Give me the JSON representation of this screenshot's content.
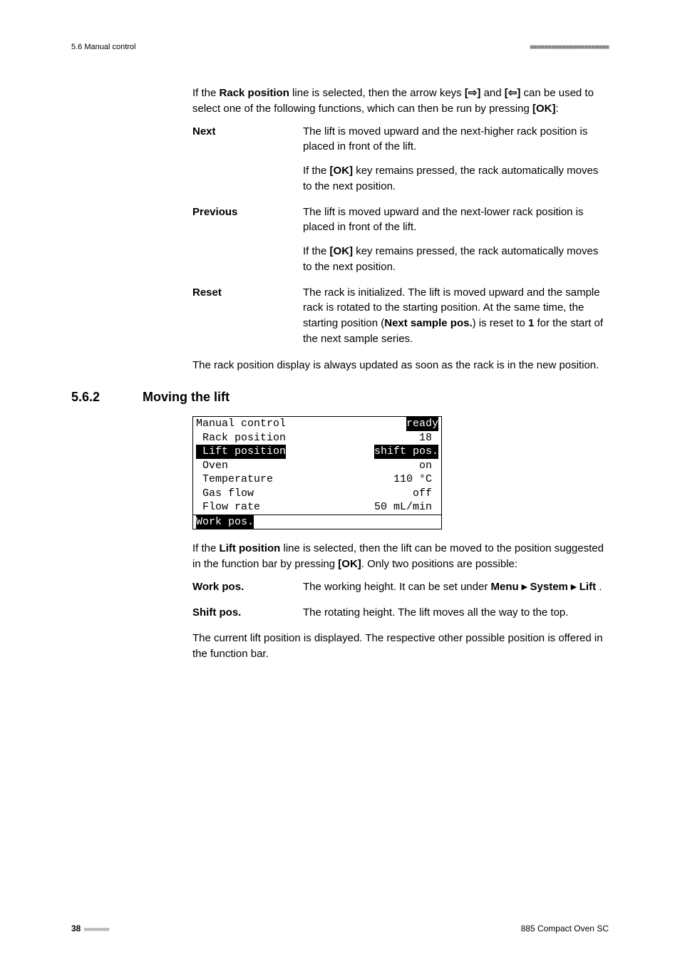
{
  "header": {
    "left": "5.6 Manual control",
    "squares": "■■■■■■■■■■■■■■■■■■■■■■"
  },
  "intro": {
    "p1a": "If the ",
    "p1b": "Rack position",
    "p1c": " line is selected, then the arrow keys ",
    "p1d": "[⇨]",
    "p1e": " and ",
    "p1f": "[⇦]",
    "p1g": " can be used to select one of the following functions, which can then be run by pressing ",
    "p1h": "[OK]",
    "p1i": ":"
  },
  "defs": [
    {
      "term": "Next",
      "body": [
        {
          "plain": "The lift is moved upward and the next-higher rack position is placed in front of the lift."
        },
        {
          "pre": "If the ",
          "bold": "[OK]",
          "post": " key remains pressed, the rack automatically moves to the next position."
        }
      ]
    },
    {
      "term": "Previous",
      "body": [
        {
          "plain": "The lift is moved upward and the next-lower rack position is placed in front of the lift."
        },
        {
          "pre": "If the ",
          "bold": "[OK]",
          "post": " key remains pressed, the rack automatically moves to the next position."
        }
      ]
    },
    {
      "term": "Reset",
      "body": [
        {
          "pre": "The rack is initialized. The lift is moved upward and the sample rack is rotated to the starting position. At the same time, the starting position (",
          "bold": "Next sample pos.",
          "mid": ") is reset to ",
          "bold2": "1",
          "post": " for the start of the next sample series."
        }
      ]
    }
  ],
  "rack_note": "The rack position display is always updated as soon as the rack is in the new position.",
  "section": {
    "num": "5.6.2",
    "title": "Moving the lift"
  },
  "lcd": {
    "rows": [
      {
        "left": "Manual control",
        "right": "ready",
        "rightInv": true
      },
      {
        "left": " Rack position",
        "right": "18 "
      },
      {
        "left": " Lift position",
        "right": "shift pos.",
        "leftInv": true,
        "rightInv": true
      },
      {
        "left": " Oven",
        "right": "on "
      },
      {
        "left": " Temperature",
        "right": "110 °C "
      },
      {
        "left": " Gas flow",
        "right": "off "
      },
      {
        "left": " Flow rate",
        "right": "50 mL/min "
      }
    ],
    "bottom": "Work pos."
  },
  "lift_intro": {
    "a": "If the ",
    "b": "Lift position",
    "c": " line is selected, then the lift can be moved to the position suggested in the function bar by pressing ",
    "d": "[OK]",
    "e": ". Only two positions are possible:"
  },
  "defs2": [
    {
      "term": "Work pos.",
      "body_pre": "The working height. It can be set under ",
      "body_bold": "Menu ▸ System ▸ Lift ",
      "body_post": "."
    },
    {
      "term": "Shift pos.",
      "body_plain": "The rotating height. The lift moves all the way to the top."
    }
  ],
  "lift_note": "The current lift position is displayed. The respective other possible position is offered in the function bar.",
  "footer": {
    "page": "38",
    "squares": "■■■■■■■■",
    "right": "885 Compact Oven SC"
  }
}
